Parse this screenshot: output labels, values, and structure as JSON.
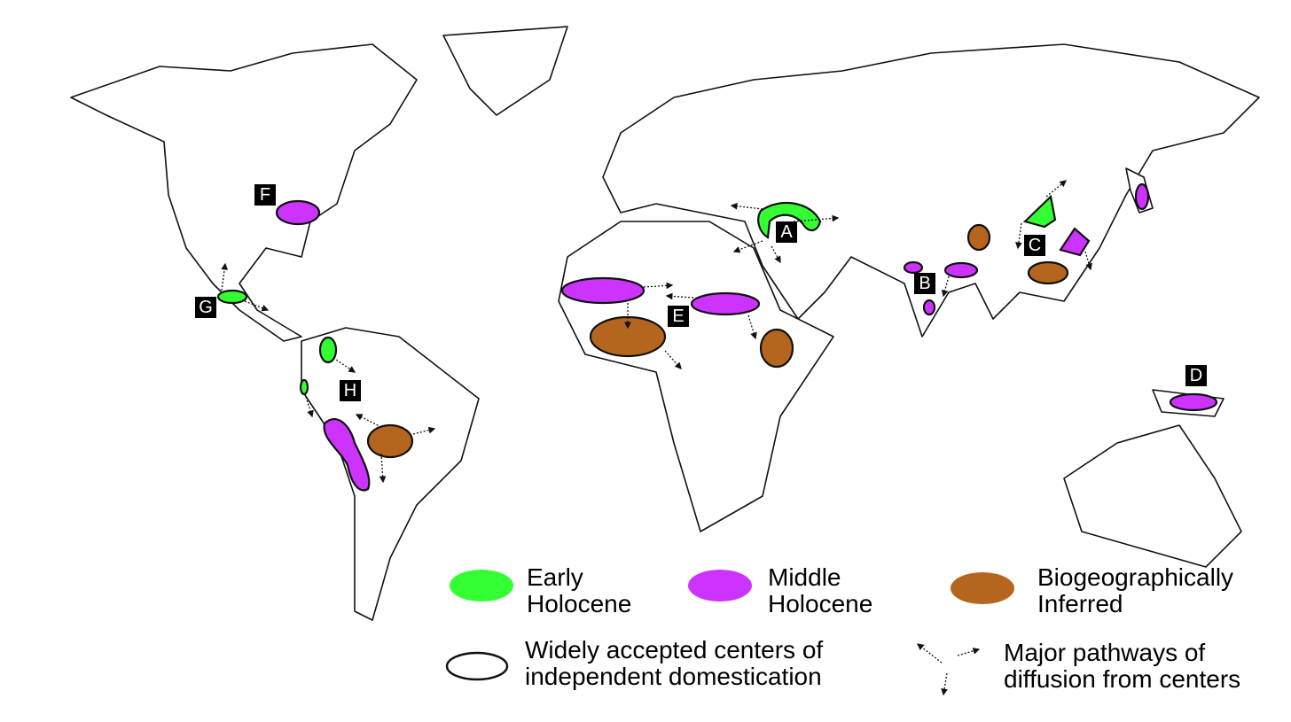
{
  "labels": [
    "A",
    "B",
    "C",
    "D",
    "E",
    "F",
    "G",
    "H"
  ],
  "legend": [
    {
      "lines": [
        "Early",
        "Holocene"
      ],
      "color": "#33ff33"
    },
    {
      "lines": [
        "Middle",
        "Holocene"
      ],
      "color": "#cc33ff"
    },
    {
      "lines": [
        "Biogeographically",
        "Inferred"
      ],
      "color": "#b5651d"
    },
    {
      "lines": [
        "Widely accepted centers of",
        "independent domestication"
      ]
    },
    {
      "lines": [
        "Major pathways of",
        "diffusion from centers"
      ]
    }
  ]
}
